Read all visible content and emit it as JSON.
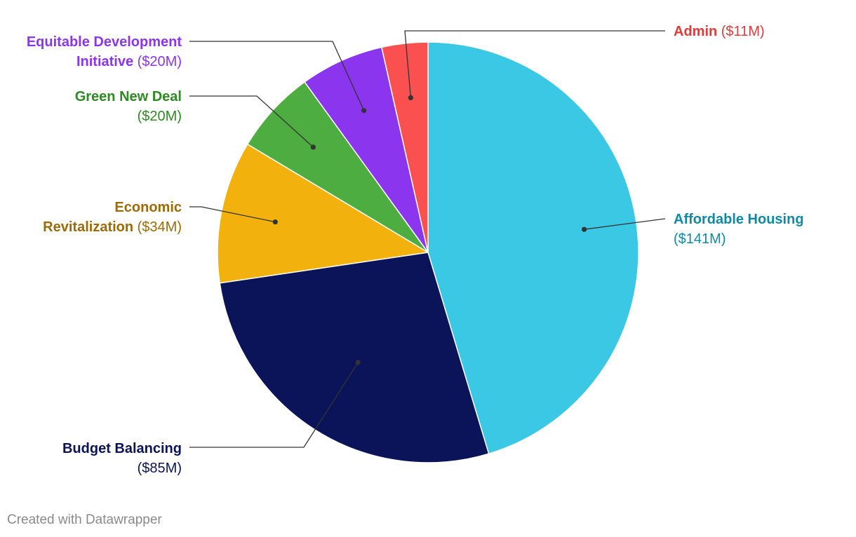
{
  "chart_data": {
    "type": "pie",
    "unit": "$M",
    "slices": [
      {
        "label": "Affordable Housing",
        "value": 141,
        "value_label": "($141M)",
        "color": "#3ac8e4",
        "label_color": "#0f8aa5"
      },
      {
        "label": "Budget Balancing",
        "value": 85,
        "value_label": "($85M)",
        "color": "#0b1459",
        "label_color": "#0b1459"
      },
      {
        "label": "Economic Revitalization",
        "value": 34,
        "value_label": "($34M)",
        "color": "#f2b10c",
        "label_color": "#9c6b06"
      },
      {
        "label": "Green New Deal",
        "value": 20,
        "value_label": "($20M)",
        "color": "#4dad40",
        "label_color": "#2e8a22"
      },
      {
        "label": "Equitable Development Initiative",
        "value": 20,
        "value_label": "($20M)",
        "color": "#8b35ef",
        "label_color": "#8b35ef"
      },
      {
        "label": "Admin",
        "value": 11,
        "value_label": "($11M)",
        "color": "#fa5050",
        "label_color": "#de3c3c"
      }
    ],
    "start_angle": "12 o'clock",
    "direction": "clockwise",
    "legend": "none"
  },
  "credit": "Created with Datawrapper"
}
